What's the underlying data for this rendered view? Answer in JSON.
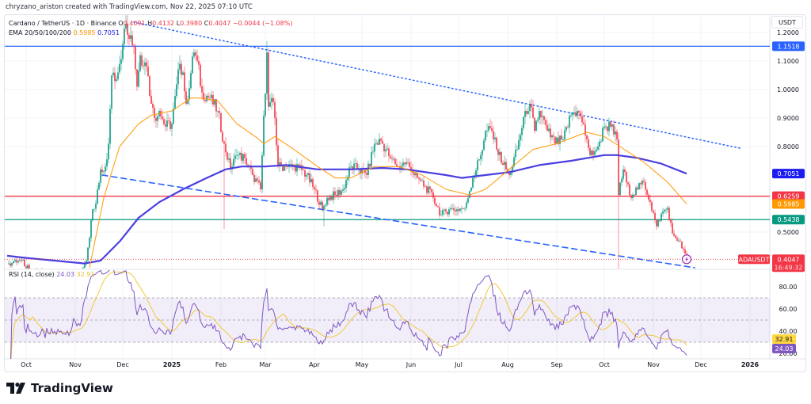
{
  "credit": "chryzano_ariston created with TradingView.com, Nov 22, 2025 07:10 UTC",
  "legend": {
    "symbol": "Cardano / TetherUS · 1D · Binance",
    "o_label": "O",
    "open": "0.4091",
    "h_label": "H",
    "high": "0.4132",
    "l_label": "L",
    "low": "0.3980",
    "c_label": "C",
    "close": "0.4047",
    "change": "−0.0044 (−1.08%)",
    "ema_label": "EMA 20/50/100/200",
    "ema50": "0.5985",
    "ema200": "0.7051"
  },
  "rsi_legend": {
    "label": "RSI (14, close)",
    "rsi": "24.03",
    "ma": "32.91"
  },
  "unit_button": "USDT",
  "logo_text": "TradingView",
  "colors": {
    "up": "#089981",
    "down": "#f23645",
    "ema50": "#ff9800",
    "ema200": "#4a3fe0",
    "resistance": "#2962ff",
    "support_red": "#f23645",
    "support_green": "#089981",
    "trendline": "#2962ff",
    "rsi": "#7e57c2",
    "rsi_ma": "#f0c93a"
  },
  "chart_data": {
    "type": "candlestick",
    "symbol": "ADAUSDT",
    "interval": "1D",
    "ylim": [
      0.375,
      1.27
    ],
    "y_ticks": [
      "1.2000",
      "1.1000",
      "1.0000",
      "0.9000",
      "0.8000",
      "0.5000"
    ],
    "x_ticks": [
      "Oct",
      "Nov",
      "Dec",
      "2025",
      "Feb",
      "Mar",
      "Apr",
      "May",
      "Jun",
      "Jul",
      "Aug",
      "Sep",
      "Oct",
      "Nov",
      "Dec",
      "2026"
    ],
    "grid": true,
    "close_path": [
      [
        "2024-09-20",
        0.39
      ],
      [
        "2024-09-28",
        0.4
      ],
      [
        "2024-10-03",
        0.37
      ],
      [
        "2024-10-15",
        0.35
      ],
      [
        "2024-10-25",
        0.34
      ],
      [
        "2024-11-05",
        0.35
      ],
      [
        "2024-11-08",
        0.4
      ],
      [
        "2024-11-10",
        0.48
      ],
      [
        "2024-11-12",
        0.58
      ],
      [
        "2024-11-14",
        0.6
      ],
      [
        "2024-11-17",
        0.72
      ],
      [
        "2024-11-20",
        0.73
      ],
      [
        "2024-11-22",
        0.81
      ],
      [
        "2024-11-24",
        1.05
      ],
      [
        "2024-11-26",
        1.03
      ],
      [
        "2024-11-29",
        1.09
      ],
      [
        "2024-12-01",
        1.16
      ],
      [
        "2024-12-03",
        1.23
      ],
      [
        "2024-12-06",
        1.19
      ],
      [
        "2024-12-08",
        1.15
      ],
      [
        "2024-12-10",
        1.01
      ],
      [
        "2024-12-12",
        1.12
      ],
      [
        "2024-12-16",
        1.08
      ],
      [
        "2024-12-19",
        0.95
      ],
      [
        "2024-12-21",
        0.9
      ],
      [
        "2024-12-24",
        0.925
      ],
      [
        "2024-12-28",
        0.87
      ],
      [
        "2025-01-01",
        0.88
      ],
      [
        "2025-01-06",
        1.09
      ],
      [
        "2025-01-08",
        1.06
      ],
      [
        "2025-01-10",
        0.95
      ],
      [
        "2025-01-15",
        1.13
      ],
      [
        "2025-01-17",
        1.1
      ],
      [
        "2025-01-20",
        0.99
      ],
      [
        "2025-01-25",
        0.97
      ],
      [
        "2025-01-30",
        0.925
      ],
      [
        "2025-02-03",
        0.81
      ],
      [
        "2025-02-07",
        0.72
      ],
      [
        "2025-02-11",
        0.77
      ],
      [
        "2025-02-16",
        0.76
      ],
      [
        "2025-02-21",
        0.7
      ],
      [
        "2025-02-26",
        0.65
      ],
      [
        "2025-03-02",
        1.13
      ],
      [
        "2025-03-03",
        0.94
      ],
      [
        "2025-03-05",
        0.97
      ],
      [
        "2025-03-07",
        0.9
      ],
      [
        "2025-03-09",
        0.73
      ],
      [
        "2025-03-14",
        0.73
      ],
      [
        "2025-03-22",
        0.73
      ],
      [
        "2025-03-27",
        0.7
      ],
      [
        "2025-04-01",
        0.65
      ],
      [
        "2025-04-06",
        0.58
      ],
      [
        "2025-04-09",
        0.62
      ],
      [
        "2025-04-14",
        0.63
      ],
      [
        "2025-04-19",
        0.65
      ],
      [
        "2025-04-24",
        0.73
      ],
      [
        "2025-04-29",
        0.72
      ],
      [
        "2025-05-04",
        0.7
      ],
      [
        "2025-05-09",
        0.81
      ],
      [
        "2025-05-13",
        0.82
      ],
      [
        "2025-05-19",
        0.76
      ],
      [
        "2025-05-24",
        0.73
      ],
      [
        "2025-05-29",
        0.745
      ],
      [
        "2025-06-01",
        0.72
      ],
      [
        "2025-06-05",
        0.69
      ],
      [
        "2025-06-10",
        0.66
      ],
      [
        "2025-06-15",
        0.62
      ],
      [
        "2025-06-20",
        0.56
      ],
      [
        "2025-06-25",
        0.58
      ],
      [
        "2025-06-30",
        0.58
      ],
      [
        "2025-07-05",
        0.585
      ],
      [
        "2025-07-10",
        0.69
      ],
      [
        "2025-07-15",
        0.77
      ],
      [
        "2025-07-18",
        0.855
      ],
      [
        "2025-07-22",
        0.855
      ],
      [
        "2025-07-25",
        0.79
      ],
      [
        "2025-07-31",
        0.72
      ],
      [
        "2025-08-02",
        0.7
      ],
      [
        "2025-08-07",
        0.79
      ],
      [
        "2025-08-12",
        0.925
      ],
      [
        "2025-08-15",
        0.95
      ],
      [
        "2025-08-18",
        0.855
      ],
      [
        "2025-08-21",
        0.925
      ],
      [
        "2025-08-26",
        0.855
      ],
      [
        "2025-08-31",
        0.81
      ],
      [
        "2025-09-05",
        0.825
      ],
      [
        "2025-09-10",
        0.91
      ],
      [
        "2025-09-14",
        0.925
      ],
      [
        "2025-09-17",
        0.885
      ],
      [
        "2025-09-20",
        0.825
      ],
      [
        "2025-09-22",
        0.77
      ],
      [
        "2025-09-27",
        0.8
      ],
      [
        "2025-10-01",
        0.87
      ],
      [
        "2025-10-05",
        0.87
      ],
      [
        "2025-10-09",
        0.825
      ],
      [
        "2025-10-10",
        0.63
      ],
      [
        "2025-10-13",
        0.72
      ],
      [
        "2025-10-17",
        0.63
      ],
      [
        "2025-10-22",
        0.65
      ],
      [
        "2025-10-26",
        0.675
      ],
      [
        "2025-10-30",
        0.605
      ],
      [
        "2025-11-03",
        0.52
      ],
      [
        "2025-11-06",
        0.565
      ],
      [
        "2025-11-10",
        0.585
      ],
      [
        "2025-11-13",
        0.495
      ],
      [
        "2025-11-17",
        0.47
      ],
      [
        "2025-11-21",
        0.425
      ],
      [
        "2025-11-22",
        0.4047
      ]
    ],
    "notable_wicks": [
      [
        "2024-12-03",
        "high",
        1.26
      ],
      [
        "2025-03-02",
        "high",
        1.17
      ],
      [
        "2025-02-03",
        "low",
        0.51
      ],
      [
        "2025-04-07",
        "low",
        0.52
      ],
      [
        "2025-10-10",
        "low",
        0.27
      ]
    ],
    "ema50": [
      [
        "2024-11-10",
        0.375
      ],
      [
        "2024-11-19",
        0.62
      ],
      [
        "2024-11-29",
        0.8
      ],
      [
        "2024-12-11",
        0.88
      ],
      [
        "2024-12-19",
        0.91
      ],
      [
        "2025-01-01",
        0.925
      ],
      [
        "2025-01-13",
        0.97
      ],
      [
        "2025-01-20",
        0.97
      ],
      [
        "2025-01-30",
        0.96
      ],
      [
        "2025-02-11",
        0.88
      ],
      [
        "2025-02-24",
        0.83
      ],
      [
        "2025-02-28",
        0.81
      ],
      [
        "2025-03-07",
        0.835
      ],
      [
        "2025-03-19",
        0.79
      ],
      [
        "2025-04-03",
        0.73
      ],
      [
        "2025-04-14",
        0.69
      ],
      [
        "2025-04-24",
        0.69
      ],
      [
        "2025-05-09",
        0.73
      ],
      [
        "2025-05-24",
        0.73
      ],
      [
        "2025-06-08",
        0.7
      ],
      [
        "2025-06-23",
        0.65
      ],
      [
        "2025-07-08",
        0.63
      ],
      [
        "2025-07-18",
        0.65
      ],
      [
        "2025-08-02",
        0.72
      ],
      [
        "2025-08-17",
        0.79
      ],
      [
        "2025-09-01",
        0.81
      ],
      [
        "2025-09-15",
        0.84
      ],
      [
        "2025-09-20",
        0.85
      ],
      [
        "2025-10-01",
        0.835
      ],
      [
        "2025-10-11",
        0.8
      ],
      [
        "2025-10-26",
        0.745
      ],
      [
        "2025-11-10",
        0.675
      ],
      [
        "2025-11-22",
        0.5985
      ]
    ],
    "ema200": [
      [
        "2024-09-19",
        0.417
      ],
      [
        "2024-09-30",
        0.41
      ],
      [
        "2024-10-19",
        0.4
      ],
      [
        "2024-11-07",
        0.39
      ],
      [
        "2024-11-17",
        0.4
      ],
      [
        "2024-11-29",
        0.467
      ],
      [
        "2024-12-11",
        0.55
      ],
      [
        "2024-12-24",
        0.605
      ],
      [
        "2025-01-08",
        0.65
      ],
      [
        "2025-01-23",
        0.69
      ],
      [
        "2025-02-04",
        0.72
      ],
      [
        "2025-02-14",
        0.73
      ],
      [
        "2025-03-01",
        0.73
      ],
      [
        "2025-03-14",
        0.735
      ],
      [
        "2025-04-03",
        0.72
      ],
      [
        "2025-04-24",
        0.72
      ],
      [
        "2025-05-14",
        0.725
      ],
      [
        "2025-05-29",
        0.72
      ],
      [
        "2025-06-23",
        0.7
      ],
      [
        "2025-07-03",
        0.69
      ],
      [
        "2025-07-18",
        0.7
      ],
      [
        "2025-08-02",
        0.71
      ],
      [
        "2025-08-21",
        0.735
      ],
      [
        "2025-09-10",
        0.75
      ],
      [
        "2025-10-01",
        0.77
      ],
      [
        "2025-10-09",
        0.77
      ],
      [
        "2025-10-22",
        0.76
      ],
      [
        "2025-11-06",
        0.74
      ],
      [
        "2025-11-22",
        0.7051
      ]
    ],
    "horizontal_levels": [
      {
        "price": 1.1518,
        "label": "1.1518",
        "color": "#2962ff"
      },
      {
        "price": 0.6259,
        "label": "0.6259",
        "color": "#f23645"
      },
      {
        "price": 0.5438,
        "label": "0.5438",
        "color": "#089981"
      }
    ],
    "price_badges": [
      {
        "label": "0.7051",
        "price": 0.7051,
        "color": "#1c1cf0"
      },
      {
        "label": "0.5985",
        "price": 0.5985,
        "color": "#ff9800"
      }
    ],
    "last_price": {
      "symbol": "ADAUSDT",
      "price": "0.4047",
      "countdown": "16:49:32",
      "value": 0.4047
    },
    "trendlines": [
      {
        "style": "dotted",
        "from": [
          "2024-12-08",
          1.236
        ],
        "to": [
          "2025-12-26",
          0.794
        ]
      },
      {
        "style": "dashed",
        "from": [
          "2024-11-18",
          0.7
        ],
        "to": [
          "2025-11-27",
          0.375
        ]
      }
    ],
    "rsi": {
      "overbought": 70,
      "middle": 50,
      "oversold": 30,
      "y_ticks": [
        "80.00",
        "60.00",
        "40.00",
        "20.00"
      ],
      "last": 24.03,
      "ma_last": 32.91
    }
  }
}
